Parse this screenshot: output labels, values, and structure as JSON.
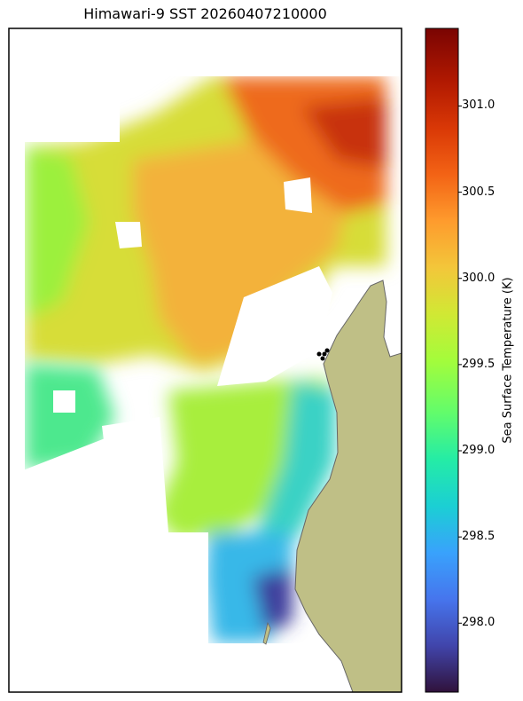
{
  "title": "Himawari-9 SST 20260407210000",
  "colorbar": {
    "label": "Sea Surface Temperature (K)",
    "ticks": [
      "301.0",
      "300.5",
      "300.0",
      "299.5",
      "299.0",
      "298.5",
      "298.0"
    ],
    "colormap": "turbo",
    "range": [
      297.6,
      301.45
    ]
  },
  "colors": {
    "land": "#bfbf86",
    "coastline": "#666666",
    "markers": "#000000"
  }
}
